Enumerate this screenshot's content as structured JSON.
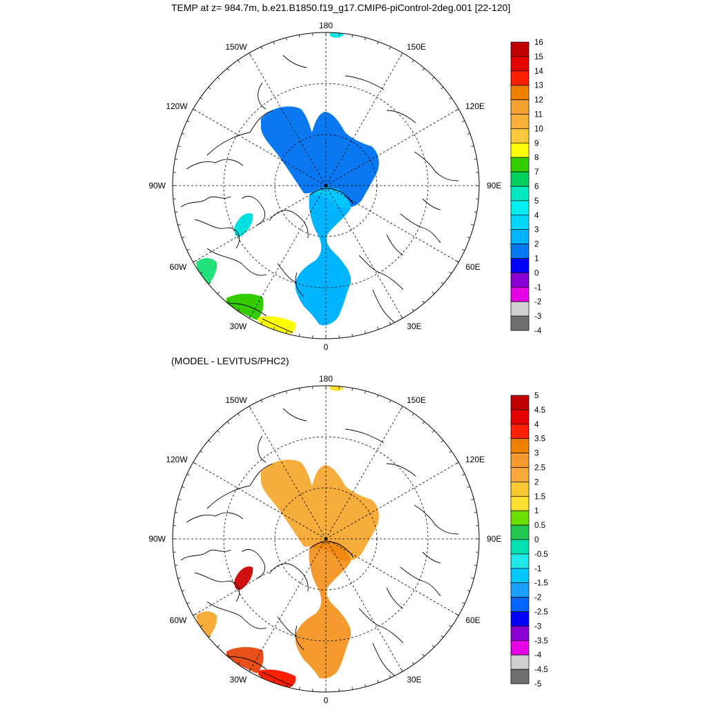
{
  "titles": {
    "top": "TEMP at z= 984.7m, b.e21.B1850.f19_g17.CMIP6-piControl-2deg.001 [22-120]",
    "bottom": "(MODEL - LEVITUS/PHC2)"
  },
  "longitude_labels": [
    "180",
    "150E",
    "120E",
    "90E",
    "60E",
    "30E",
    "0",
    "30W",
    "60W",
    "90W",
    "120W",
    "150W"
  ],
  "maps": [
    {
      "id": "top",
      "colorbar": {
        "labels": [
          "16",
          "15",
          "14",
          "13",
          "12",
          "11",
          "10",
          "9",
          "8",
          "7",
          "6",
          "5",
          "4",
          "3",
          "2",
          "1",
          "0",
          "-1",
          "-2",
          "-3",
          "-4"
        ],
        "colors": [
          "#c00000",
          "#e60000",
          "#ff2000",
          "#f08000",
          "#f5a030",
          "#fbb03a",
          "#fac83a",
          "#ffff00",
          "#33cc00",
          "#00d060",
          "#00e8c0",
          "#00f0f0",
          "#00d8ff",
          "#00b4ff",
          "#0078f0",
          "#0000ff",
          "#8a00d2",
          "#e600e6",
          "#d0d0d0",
          "#6e6e6e"
        ]
      },
      "fields": {
        "main": "#0a78f0",
        "lower": "#00b4ff",
        "upper_sub": "#00c8ff",
        "bay": "#00e0e0",
        "lab": "#22e07a",
        "south": "#33cc00",
        "southeast": "#ffff00",
        "bering": "#10e8e8"
      }
    },
    {
      "id": "bottom",
      "colorbar": {
        "labels": [
          "5",
          "4.5",
          "4",
          "3.5",
          "3",
          "2.5",
          "2",
          "1.5",
          "1",
          "0.5",
          "0",
          "-0.5",
          "-1",
          "-1.5",
          "-2",
          "-2.5",
          "-3",
          "-3.5",
          "-4",
          "-4.5",
          "-5"
        ],
        "colors": [
          "#c00000",
          "#e60000",
          "#ff2000",
          "#f08000",
          "#f59a2e",
          "#f8a83a",
          "#fac832",
          "#ffdf30",
          "#6adf00",
          "#20c850",
          "#00e0b0",
          "#20e8e8",
          "#00c8ff",
          "#1ca0ff",
          "#0066ff",
          "#0000ff",
          "#8a00d2",
          "#e600e6",
          "#d0d0d0",
          "#6e6e6e"
        ]
      },
      "fields": {
        "main": "#f6ad3b",
        "lower": "#f59a2e",
        "upper_sub": "#f08a10",
        "bay": "#d01010",
        "lab": "#f6ad3b",
        "south": "#e8501a",
        "southeast": "#ff2000",
        "bering": "#ffe030"
      }
    }
  ]
}
